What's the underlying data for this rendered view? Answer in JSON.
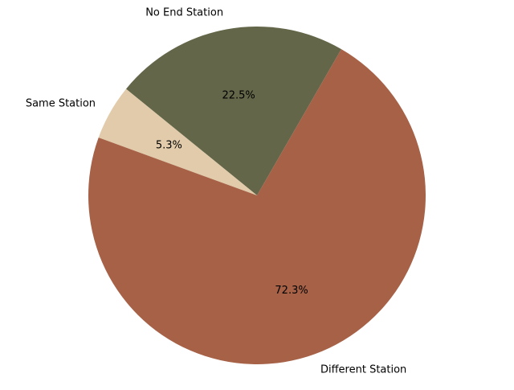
{
  "chart_data": {
    "type": "pie",
    "title": "",
    "slices": [
      {
        "label": "No End Station",
        "value": 22.5,
        "pct_label": "22.5%",
        "color": "#636648"
      },
      {
        "label": "Same Station",
        "value": 5.3,
        "pct_label": "5.3%",
        "color": "#e1cbaa"
      },
      {
        "label": "Different Station",
        "value": 72.3,
        "pct_label": "72.3%",
        "color": "#a66147"
      }
    ],
    "start_angle_deg": 60,
    "direction": "counterclockwise",
    "legend": "none"
  }
}
